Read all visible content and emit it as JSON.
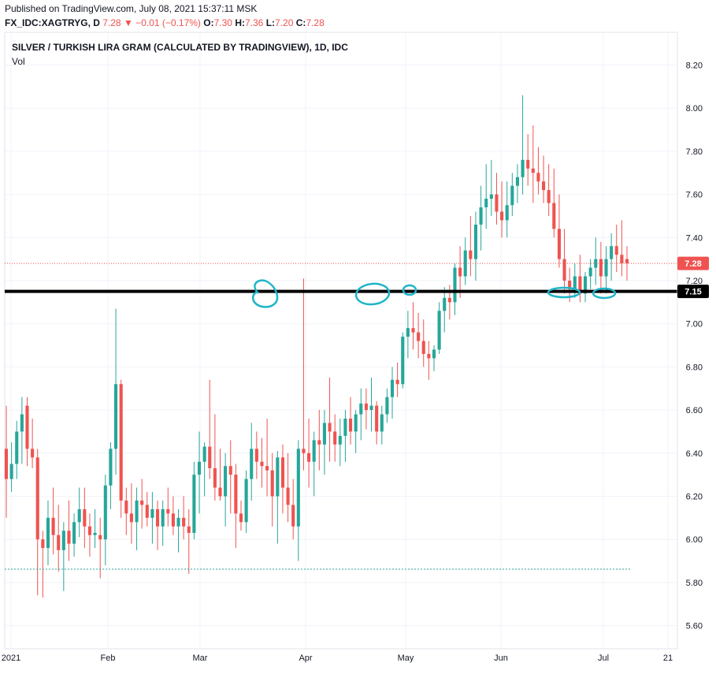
{
  "header": {
    "published": "Published on TradingView.com, July 08, 2021 15:37:11 MSK",
    "symbol": "FX_IDC:XAGTRYG, D",
    "last": "7.28",
    "arrow": "▼",
    "change": "−0.01 (−0.17%)",
    "o_label": "O:",
    "o_val": "7.30",
    "h_label": "H:",
    "h_val": "7.36",
    "l_label": "L:",
    "l_val": "7.20",
    "c_label": "C:",
    "c_val": "7.28"
  },
  "legend": {
    "title": "SILVER / TURKISH LIRA GRAM (CALCULATED BY TRADINGVIEW), 1D, IDC",
    "volume": "Vol"
  },
  "price_badges": {
    "last": "7.28",
    "support": "7.15"
  },
  "colors": {
    "up": "#26a69a",
    "down": "#ef5350",
    "support_line": "#000000",
    "annotation": "#00bcd4",
    "grid": "#f0f3fa"
  },
  "chart_data": {
    "type": "candlestick",
    "title": "SILVER / TURKISH LIRA GRAM (CALCULATED BY TRADINGVIEW), 1D, IDC",
    "x_tick_labels": [
      "2021",
      "Feb",
      "Mar",
      "Apr",
      "May",
      "Jun",
      "Jul",
      "21"
    ],
    "y_tick_labels": [
      "5.60",
      "5.80",
      "6.00",
      "6.20",
      "6.40",
      "6.60",
      "6.80",
      "7.00",
      "7.20",
      "7.40",
      "7.60",
      "7.80",
      "8.00",
      "8.20"
    ],
    "ylim": [
      5.52,
      8.32
    ],
    "support_level": 7.15,
    "last_price": 7.28,
    "low_marker_price": 5.86,
    "grid": true,
    "candles": [
      [
        6.42,
        6.62,
        6.1,
        6.28
      ],
      [
        6.28,
        6.45,
        6.22,
        6.35
      ],
      [
        6.35,
        6.55,
        6.28,
        6.5
      ],
      [
        6.5,
        6.66,
        6.35,
        6.58
      ],
      [
        6.62,
        6.66,
        6.34,
        6.42
      ],
      [
        6.42,
        6.56,
        6.33,
        6.38
      ],
      [
        6.38,
        6.42,
        5.74,
        6.0
      ],
      [
        6.0,
        6.04,
        5.73,
        5.96
      ],
      [
        5.96,
        6.18,
        5.88,
        6.1
      ],
      [
        6.1,
        6.24,
        5.93,
        6.02
      ],
      [
        6.02,
        6.16,
        5.85,
        5.95
      ],
      [
        5.95,
        6.08,
        5.76,
        6.04
      ],
      [
        6.04,
        6.18,
        5.9,
        5.98
      ],
      [
        5.98,
        6.12,
        5.92,
        6.08
      ],
      [
        6.08,
        6.24,
        6.01,
        6.14
      ],
      [
        6.14,
        6.24,
        5.96,
        6.06
      ],
      [
        6.06,
        6.12,
        5.92,
        6.02
      ],
      [
        6.02,
        6.14,
        5.96,
        6.03
      ],
      [
        6.02,
        6.1,
        5.82,
        6.0
      ],
      [
        6.0,
        6.3,
        5.88,
        6.25
      ],
      [
        6.25,
        6.45,
        6.14,
        6.42
      ],
      [
        6.42,
        7.07,
        6.3,
        6.72
      ],
      [
        6.72,
        6.74,
        6.1,
        6.18
      ],
      [
        6.18,
        6.24,
        6.02,
        6.12
      ],
      [
        6.12,
        6.26,
        5.98,
        6.08
      ],
      [
        6.08,
        6.24,
        5.95,
        6.18
      ],
      [
        6.18,
        6.28,
        6.05,
        6.16
      ],
      [
        6.16,
        6.22,
        6.06,
        6.1
      ],
      [
        6.1,
        6.22,
        5.98,
        6.14
      ],
      [
        6.14,
        6.18,
        5.95,
        6.06
      ],
      [
        6.06,
        6.18,
        5.97,
        6.14
      ],
      [
        6.14,
        6.24,
        6.06,
        6.12
      ],
      [
        6.12,
        6.2,
        6.02,
        6.06
      ],
      [
        6.06,
        6.14,
        5.94,
        6.1
      ],
      [
        6.1,
        6.2,
        6.0,
        6.06
      ],
      [
        6.06,
        6.14,
        5.84,
        6.03
      ],
      [
        6.03,
        6.36,
        6.0,
        6.3
      ],
      [
        6.3,
        6.5,
        6.12,
        6.36
      ],
      [
        6.36,
        6.45,
        6.2,
        6.43
      ],
      [
        6.43,
        6.74,
        6.28,
        6.33
      ],
      [
        6.33,
        6.58,
        6.18,
        6.24
      ],
      [
        6.24,
        6.42,
        6.18,
        6.2
      ],
      [
        6.2,
        6.4,
        6.06,
        6.34
      ],
      [
        6.34,
        6.46,
        6.12,
        6.3
      ],
      [
        6.3,
        6.35,
        5.96,
        6.12
      ],
      [
        6.12,
        6.18,
        6.04,
        6.08
      ],
      [
        6.08,
        6.32,
        6.03,
        6.28
      ],
      [
        6.28,
        6.54,
        6.18,
        6.42
      ],
      [
        6.42,
        6.5,
        6.28,
        6.36
      ],
      [
        6.36,
        6.47,
        6.24,
        6.34
      ],
      [
        6.34,
        6.56,
        6.2,
        6.32
      ],
      [
        6.32,
        6.4,
        6.06,
        6.2
      ],
      [
        6.2,
        6.41,
        5.98,
        6.38
      ],
      [
        6.38,
        6.44,
        6.12,
        6.24
      ],
      [
        6.24,
        6.4,
        6.08,
        6.16
      ],
      [
        6.16,
        6.28,
        6.0,
        6.06
      ],
      [
        6.06,
        6.46,
        5.9,
        6.42
      ],
      [
        6.42,
        7.21,
        6.32,
        6.4
      ],
      [
        6.4,
        6.56,
        6.24,
        6.36
      ],
      [
        6.36,
        6.5,
        6.2,
        6.46
      ],
      [
        6.46,
        6.6,
        6.32,
        6.44
      ],
      [
        6.44,
        6.6,
        6.3,
        6.54
      ],
      [
        6.54,
        6.75,
        6.36,
        6.5
      ],
      [
        6.5,
        6.58,
        6.36,
        6.44
      ],
      [
        6.44,
        6.56,
        6.34,
        6.48
      ],
      [
        6.48,
        6.6,
        6.36,
        6.56
      ],
      [
        6.56,
        6.66,
        6.44,
        6.5
      ],
      [
        6.5,
        6.6,
        6.4,
        6.58
      ],
      [
        6.58,
        6.7,
        6.46,
        6.63
      ],
      [
        6.63,
        6.7,
        6.51,
        6.6
      ],
      [
        6.6,
        6.75,
        6.5,
        6.62
      ],
      [
        6.62,
        6.64,
        6.44,
        6.5
      ],
      [
        6.5,
        6.62,
        6.44,
        6.58
      ],
      [
        6.58,
        6.7,
        6.54,
        6.66
      ],
      [
        6.66,
        6.8,
        6.56,
        6.74
      ],
      [
        6.74,
        6.82,
        6.66,
        6.72
      ],
      [
        6.72,
        6.96,
        6.7,
        6.94
      ],
      [
        6.94,
        7.06,
        6.84,
        6.98
      ],
      [
        6.98,
        7.1,
        6.88,
        6.96
      ],
      [
        6.96,
        7.05,
        6.84,
        6.92
      ],
      [
        6.92,
        7.02,
        6.8,
        6.86
      ],
      [
        6.86,
        6.92,
        6.74,
        6.84
      ],
      [
        6.84,
        6.9,
        6.78,
        6.88
      ],
      [
        6.88,
        7.1,
        6.86,
        7.06
      ],
      [
        7.06,
        7.17,
        6.96,
        7.12
      ],
      [
        7.12,
        7.18,
        7.02,
        7.1
      ],
      [
        7.1,
        7.28,
        7.04,
        7.26
      ],
      [
        7.26,
        7.36,
        7.12,
        7.22
      ],
      [
        7.22,
        7.4,
        7.18,
        7.34
      ],
      [
        7.34,
        7.5,
        7.22,
        7.3
      ],
      [
        7.3,
        7.52,
        7.2,
        7.46
      ],
      [
        7.46,
        7.64,
        7.34,
        7.54
      ],
      [
        7.54,
        7.74,
        7.44,
        7.58
      ],
      [
        7.58,
        7.76,
        7.5,
        7.6
      ],
      [
        7.6,
        7.7,
        7.46,
        7.52
      ],
      [
        7.52,
        7.66,
        7.4,
        7.48
      ],
      [
        7.48,
        7.66,
        7.4,
        7.55
      ],
      [
        7.55,
        7.7,
        7.5,
        7.64
      ],
      [
        7.64,
        7.74,
        7.56,
        7.68
      ],
      [
        7.68,
        8.06,
        7.6,
        7.76
      ],
      [
        7.76,
        7.88,
        7.64,
        7.72
      ],
      [
        7.72,
        7.92,
        7.56,
        7.7
      ],
      [
        7.7,
        7.82,
        7.6,
        7.66
      ],
      [
        7.66,
        7.78,
        7.56,
        7.62
      ],
      [
        7.62,
        7.74,
        7.5,
        7.56
      ],
      [
        7.56,
        7.72,
        7.4,
        7.44
      ],
      [
        7.44,
        7.6,
        7.26,
        7.3
      ],
      [
        7.3,
        7.44,
        7.14,
        7.2
      ],
      [
        7.2,
        7.26,
        7.1,
        7.16
      ],
      [
        7.16,
        7.28,
        7.12,
        7.22
      ],
      [
        7.22,
        7.32,
        7.1,
        7.14
      ],
      [
        7.14,
        7.24,
        7.1,
        7.22
      ],
      [
        7.22,
        7.3,
        7.16,
        7.26
      ],
      [
        7.26,
        7.4,
        7.18,
        7.3
      ],
      [
        7.3,
        7.38,
        7.14,
        7.22
      ],
      [
        7.22,
        7.36,
        7.14,
        7.3
      ],
      [
        7.3,
        7.42,
        7.2,
        7.36
      ],
      [
        7.36,
        7.46,
        7.24,
        7.32
      ],
      [
        7.32,
        7.48,
        7.22,
        7.28
      ],
      [
        7.3,
        7.36,
        7.2,
        7.28
      ]
    ]
  }
}
